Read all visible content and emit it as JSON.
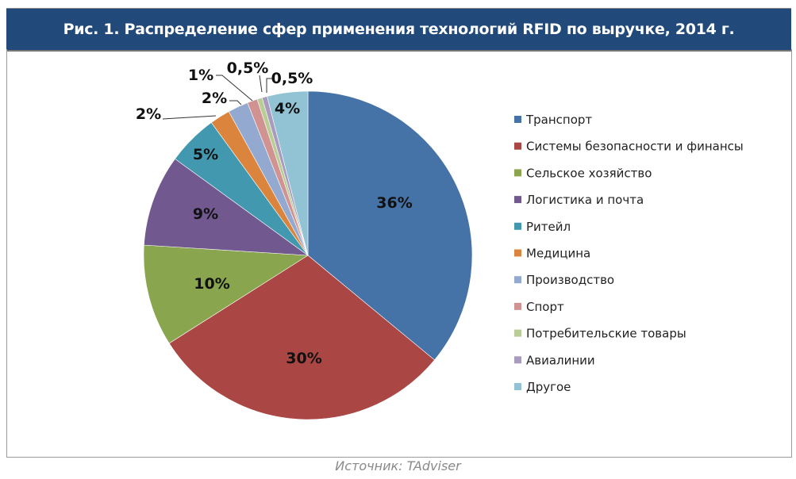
{
  "chart_data": {
    "type": "pie",
    "title": "Рис. 1. Распределение сфер применения технологий RFID по выручке, 2014 г.",
    "source": "Источник: TAdviser",
    "legend_position": "right",
    "slices": [
      {
        "name": "Транспорт",
        "value": 36,
        "label": "36%",
        "color": "#4572A7"
      },
      {
        "name": "Системы безопасности и финансы",
        "value": 30,
        "label": "30%",
        "color": "#AA4643"
      },
      {
        "name": "Сельское хозяйство",
        "value": 10,
        "label": "10%",
        "color": "#89A54E"
      },
      {
        "name": "Логистика и почта",
        "value": 9,
        "label": "9%",
        "color": "#71588F"
      },
      {
        "name": "Ритейл",
        "value": 5,
        "label": "5%",
        "color": "#4198AF"
      },
      {
        "name": "Медицина",
        "value": 2,
        "label": "2%",
        "color": "#DB843D"
      },
      {
        "name": "Производство",
        "value": 2,
        "label": "2%",
        "color": "#93A9CF"
      },
      {
        "name": "Спорт",
        "value": 1,
        "label": "1%",
        "color": "#D19392"
      },
      {
        "name": "Потребительские товары",
        "value": 0.5,
        "label": "0,5%",
        "color": "#B9CD96"
      },
      {
        "name": "Авиалинии",
        "value": 0.5,
        "label": "0,5%",
        "color": "#A99BBD"
      },
      {
        "name": "Другое",
        "value": 4,
        "label": "4%",
        "color": "#92C3D5"
      }
    ]
  }
}
